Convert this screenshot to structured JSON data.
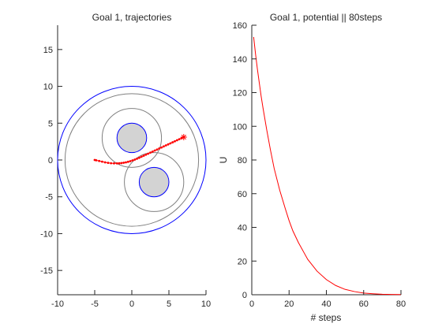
{
  "figure": {
    "background": "#ffffff"
  },
  "chart_data": [
    {
      "type": "scatter",
      "title": "Goal 1, trajectories",
      "xlabel": "",
      "ylabel": "",
      "xlim": [
        -10,
        10
      ],
      "ylim": [
        -18.3,
        18.3
      ],
      "xticks": [
        -10,
        -5,
        0,
        5,
        10
      ],
      "yticks": [
        -15,
        -10,
        -5,
        0,
        5,
        10,
        15
      ],
      "grid": false,
      "aspect": "equal",
      "boundary_circle": {
        "center": [
          0,
          0
        ],
        "radius": 10,
        "color": "#0000ff"
      },
      "outer_gray_circle": {
        "center": [
          0,
          0
        ],
        "radius": 9,
        "color": "#808080"
      },
      "obstacles": [
        {
          "center": [
            0,
            3
          ],
          "radius": 2,
          "fill": "#d3d3d3",
          "edge": "#0000ff",
          "influence_radius": 4,
          "influence_color": "#808080"
        },
        {
          "center": [
            3,
            -3
          ],
          "radius": 2,
          "fill": "#d3d3d3",
          "edge": "#0000ff",
          "influence_radius": 4,
          "influence_color": "#808080"
        }
      ],
      "start": [
        7,
        3
      ],
      "goal": [
        -5,
        0
      ],
      "trajectory_color": "#ff0000",
      "trajectory_marker": "*",
      "trajectory": [
        [
          7,
          3.1
        ],
        [
          6.7,
          2.96
        ],
        [
          6.4,
          2.82
        ],
        [
          6.1,
          2.68
        ],
        [
          5.8,
          2.54
        ],
        [
          5.5,
          2.4
        ],
        [
          5.2,
          2.26
        ],
        [
          4.9,
          2.12
        ],
        [
          4.6,
          1.98
        ],
        [
          4.3,
          1.84
        ],
        [
          4.0,
          1.7
        ],
        [
          3.7,
          1.56
        ],
        [
          3.4,
          1.42
        ],
        [
          3.1,
          1.28
        ],
        [
          2.8,
          1.14
        ],
        [
          2.5,
          1.0
        ],
        [
          2.2,
          0.86
        ],
        [
          1.9,
          0.72
        ],
        [
          1.6,
          0.58
        ],
        [
          1.3,
          0.44
        ],
        [
          1.0,
          0.3
        ],
        [
          0.7,
          0.17
        ],
        [
          0.4,
          0.05
        ],
        [
          0.1,
          -0.06
        ],
        [
          -0.2,
          -0.16
        ],
        [
          -0.5,
          -0.25
        ],
        [
          -0.8,
          -0.32
        ],
        [
          -1.1,
          -0.38
        ],
        [
          -1.4,
          -0.42
        ],
        [
          -1.7,
          -0.45
        ],
        [
          -2.0,
          -0.46
        ],
        [
          -2.4,
          -0.46
        ],
        [
          -2.8,
          -0.44
        ],
        [
          -3.2,
          -0.39
        ],
        [
          -3.6,
          -0.32
        ],
        [
          -4.0,
          -0.23
        ],
        [
          -4.4,
          -0.13
        ],
        [
          -4.8,
          -0.04
        ],
        [
          -5.0,
          0.0
        ]
      ]
    },
    {
      "type": "line",
      "title": "Goal 1, potential || 80steps",
      "xlabel": "# steps",
      "ylabel": "U",
      "xlim": [
        0,
        80
      ],
      "ylim": [
        0,
        160
      ],
      "xticks": [
        0,
        20,
        40,
        60,
        80
      ],
      "yticks": [
        0,
        20,
        40,
        60,
        80,
        100,
        120,
        140,
        160
      ],
      "grid": false,
      "series": [
        {
          "color": "#ff0000",
          "x": [
            1,
            2,
            3,
            4,
            5,
            6,
            8,
            10,
            12,
            15,
            18,
            20,
            22,
            25,
            28,
            30,
            35,
            40,
            45,
            50,
            55,
            60,
            65,
            70,
            75,
            80
          ],
          "y": [
            153,
            143,
            134,
            126,
            118,
            111,
            98,
            86,
            75,
            62,
            51,
            44,
            38,
            31,
            25,
            21,
            14,
            9,
            5.5,
            3.2,
            1.9,
            1.0,
            0.6,
            0.3,
            0.15,
            0.1
          ]
        }
      ]
    }
  ]
}
